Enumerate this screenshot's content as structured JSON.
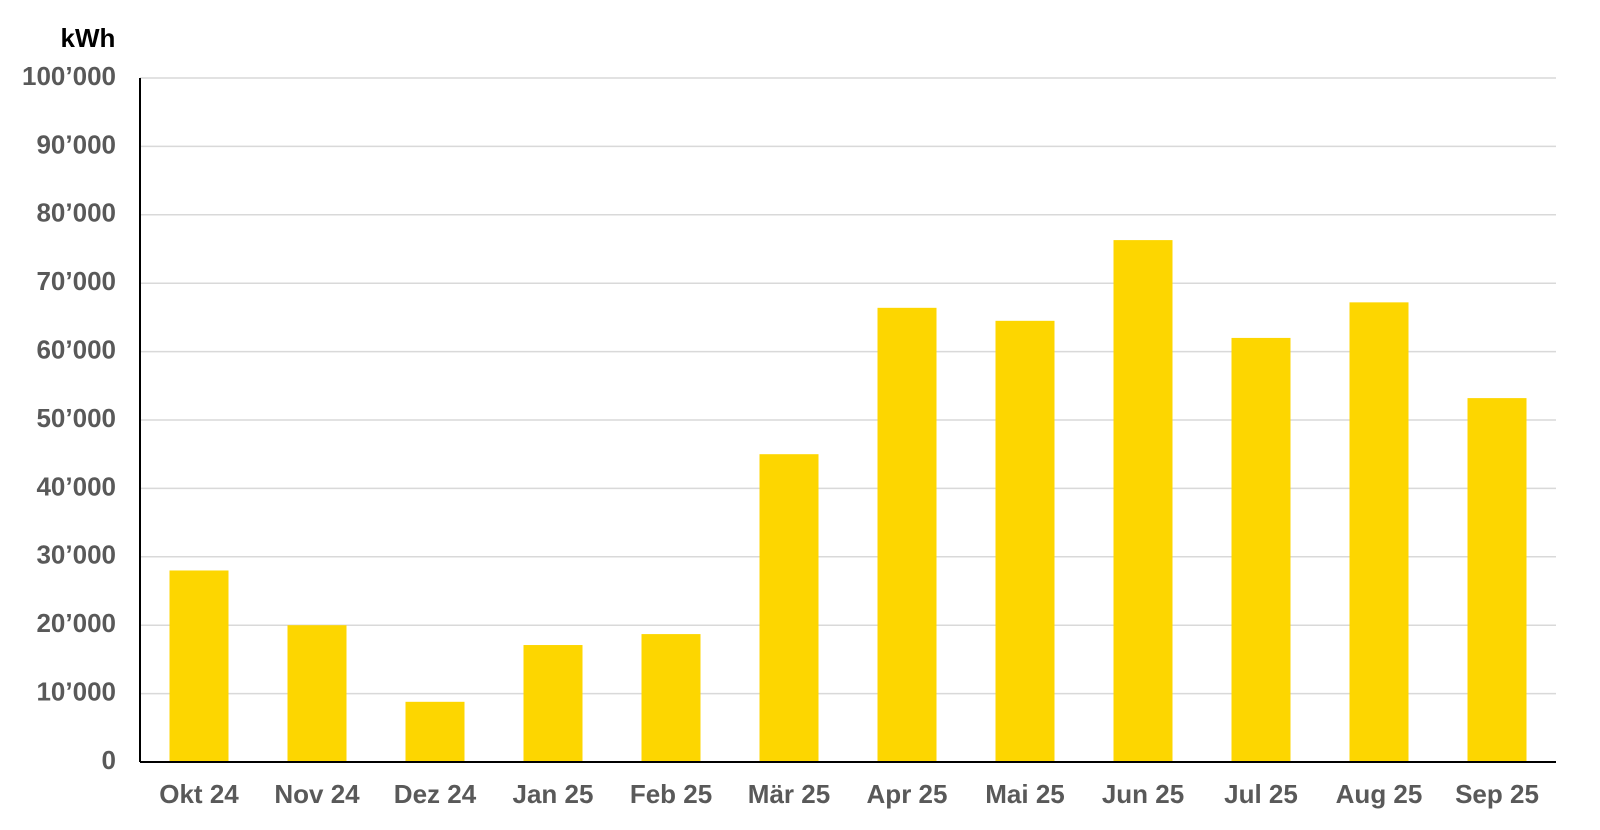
{
  "chart_data": {
    "type": "bar",
    "y_label": "kWh",
    "categories": [
      "Okt 24",
      "Nov 24",
      "Dez 24",
      "Jan 25",
      "Feb 25",
      "Mär 25",
      "Apr 25",
      "Mai 25",
      "Jun 25",
      "Jul 25",
      "Aug 25",
      "Sep 25"
    ],
    "values": [
      28000,
      20000,
      8800,
      17100,
      18700,
      45000,
      66400,
      64500,
      76300,
      62000,
      67200,
      53200
    ],
    "color": "#fdd600",
    "ylim": [
      0,
      100000
    ],
    "yticks": [
      0,
      {
        "value": 10000,
        "label": "10’000"
      },
      {
        "value": 20000,
        "label": "20’000"
      },
      {
        "value": 30000,
        "label": "30’000"
      },
      {
        "value": 40000,
        "label": "40’000"
      },
      {
        "value": 50000,
        "label": "50’000"
      },
      {
        "value": 60000,
        "label": "60’000"
      },
      {
        "value": 70000,
        "label": "70’000"
      },
      {
        "value": 80000,
        "label": "80’000"
      },
      {
        "value": 90000,
        "label": "90’000"
      },
      {
        "value": 100000,
        "label": "100’000"
      }
    ],
    "grid": true
  }
}
